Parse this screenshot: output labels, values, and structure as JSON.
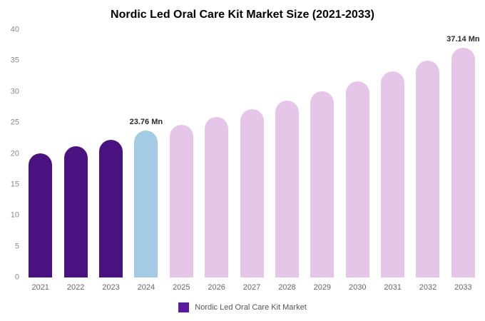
{
  "chart_data": {
    "type": "bar",
    "title": "Nordic Led Oral Care Kit Market Size (2021-2033)",
    "categories": [
      "2021",
      "2022",
      "2023",
      "2024",
      "2025",
      "2026",
      "2027",
      "2028",
      "2029",
      "2030",
      "2031",
      "2032",
      "2033"
    ],
    "values": [
      20.1,
      21.2,
      22.2,
      23.76,
      24.7,
      25.9,
      27.2,
      28.6,
      30.1,
      31.7,
      33.3,
      35.0,
      37.14
    ],
    "value_labels": [
      "",
      "",
      "",
      "23.76 Mn",
      "",
      "",
      "",
      "",
      "",
      "",
      "",
      "",
      "37.14 Mn"
    ],
    "bar_colors": [
      "#4a1181",
      "#4a1181",
      "#4a1181",
      "#a3cbe4",
      "#e5c5e8",
      "#e5c5e8",
      "#e5c5e8",
      "#e5c5e8",
      "#e5c5e8",
      "#e5c5e8",
      "#e5c5e8",
      "#e5c5e8",
      "#e5c5e8"
    ],
    "xlabel": "",
    "ylabel": "",
    "ylim": [
      0,
      40
    ],
    "yticks": [
      0,
      5,
      10,
      15,
      20,
      25,
      30,
      35,
      40
    ],
    "grid": false,
    "legend_position": "bottom",
    "legend": [
      {
        "label": "Nordic Led Oral Care Kit Market",
        "color": "#5b1c9c"
      }
    ]
  }
}
